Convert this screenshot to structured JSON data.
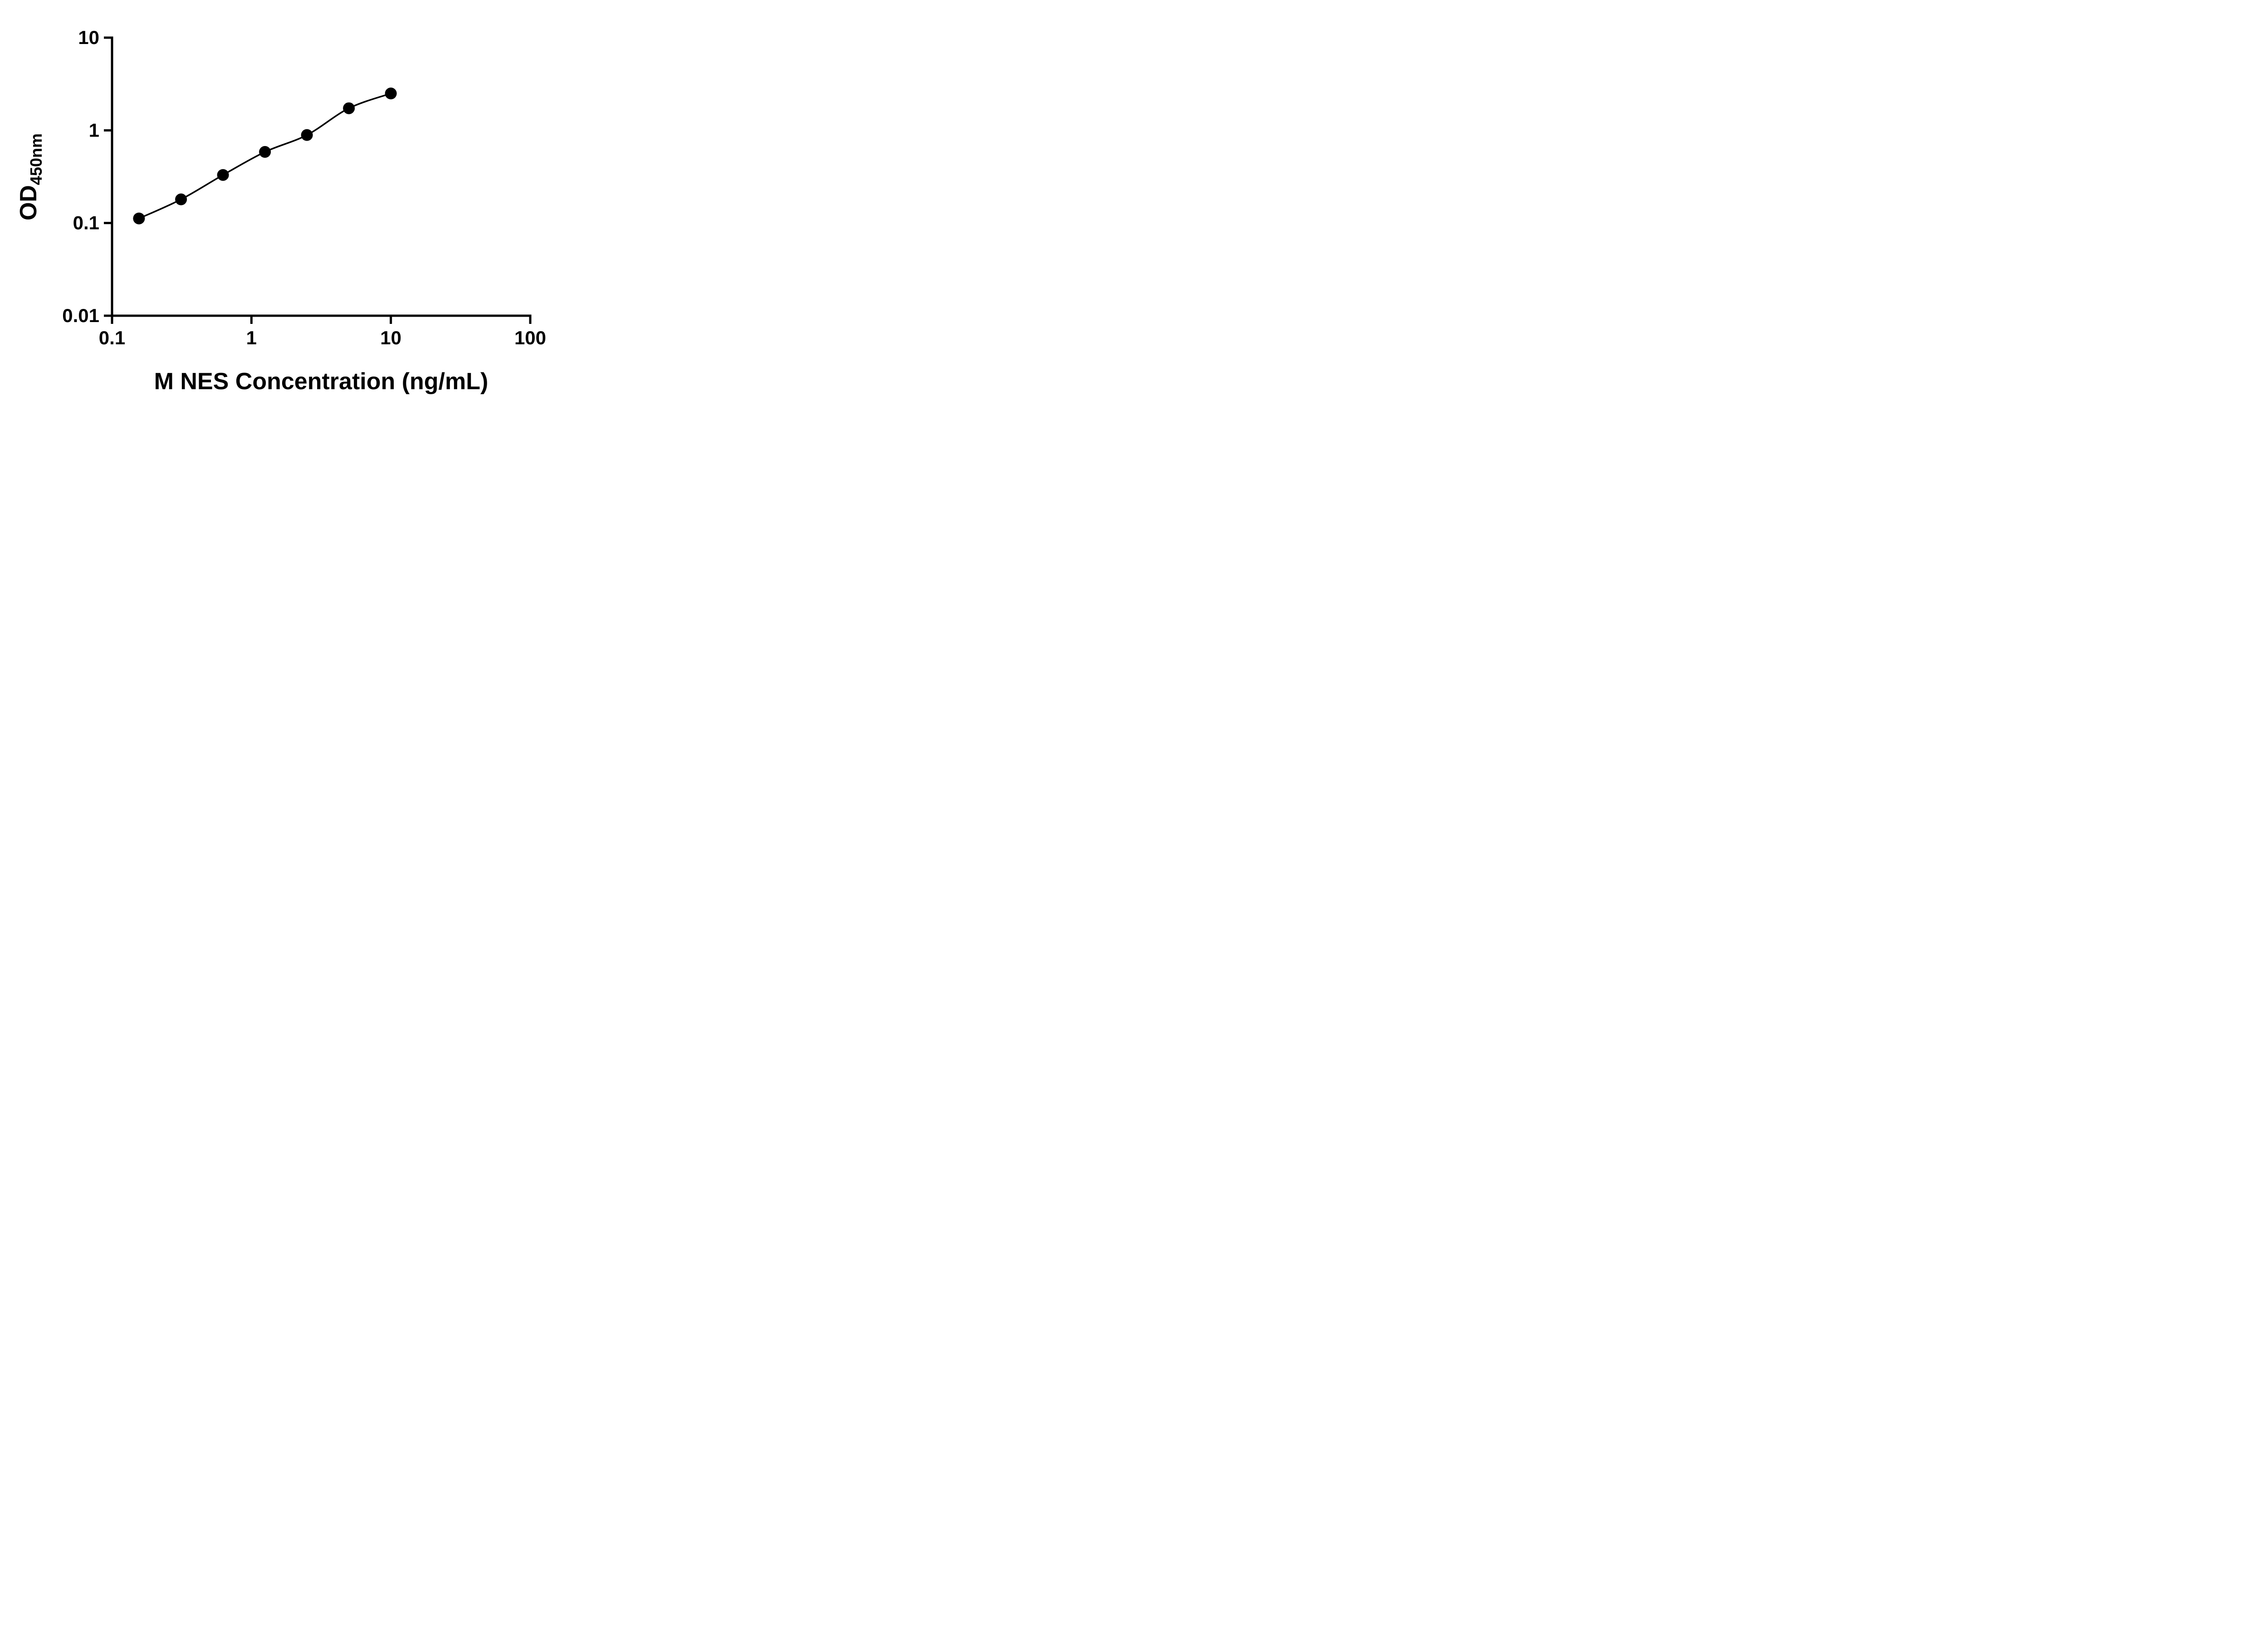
{
  "chart_data": {
    "type": "scatter",
    "x": [
      0.156,
      0.3125,
      0.625,
      1.25,
      2.5,
      5,
      10
    ],
    "y": [
      0.112,
      0.18,
      0.33,
      0.585,
      0.89,
      1.73,
      2.5
    ],
    "title": "",
    "xlabel": "M NES Concentration (ng/mL)",
    "ylabel": "OD450nm",
    "ylabel_main": "OD",
    "ylabel_sub": "450nm",
    "x_scale": "log",
    "y_scale": "log",
    "xlim": [
      0.1,
      100
    ],
    "ylim": [
      0.01,
      10
    ],
    "x_ticks": [
      0.1,
      1,
      10,
      100
    ],
    "x_tick_labels": [
      "0.1",
      "1",
      "10",
      "100"
    ],
    "y_ticks": [
      0.01,
      0.1,
      1,
      10
    ],
    "y_tick_labels": [
      "0.01",
      "0.1",
      "1",
      "10"
    ],
    "grid": "off",
    "legend": "none",
    "line_color": "#000000",
    "marker_color": "#000000",
    "axis_color": "#000000",
    "background_color": "#ffffff"
  }
}
